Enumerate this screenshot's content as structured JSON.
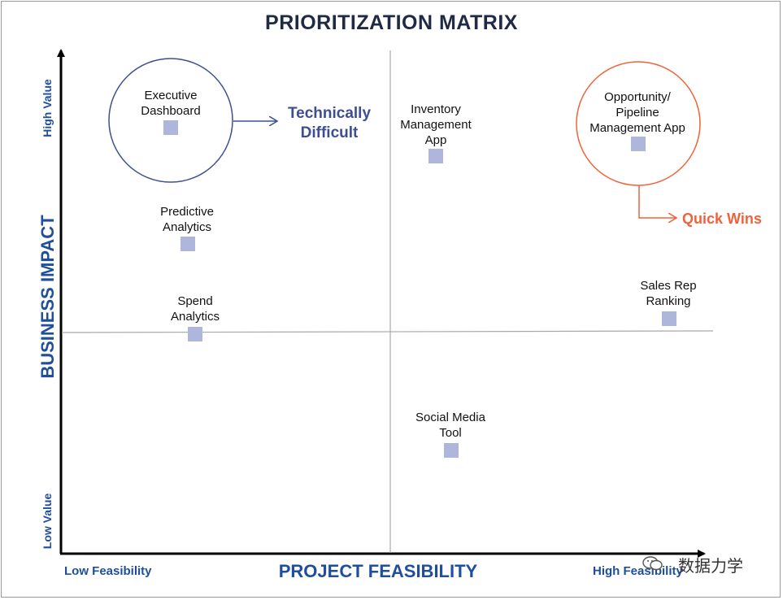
{
  "title": "PRIORITIZATION MATRIX",
  "axes": {
    "x_title": "PROJECT FEASIBILITY",
    "y_title": "BUSINESS IMPACT",
    "x_low": "Low Feasibility",
    "x_high": "High Feasibility",
    "y_low": "Low Value",
    "y_high": "High Value"
  },
  "items": [
    {
      "id": "executive-dashboard",
      "line1": "Executive",
      "line2": "Dashboard",
      "line3": ""
    },
    {
      "id": "predictive-analytics",
      "line1": "Predictive",
      "line2": "Analytics",
      "line3": ""
    },
    {
      "id": "spend-analytics",
      "line1": "Spend",
      "line2": "Analytics",
      "line3": ""
    },
    {
      "id": "inventory-management-app",
      "line1": "Inventory",
      "line2": "Management",
      "line3": "App"
    },
    {
      "id": "opportunity-pipeline-app",
      "line1": "Opportunity/",
      "line2": "Pipeline",
      "line3": "Management App"
    },
    {
      "id": "sales-rep-ranking",
      "line1": "Sales Rep",
      "line2": "Ranking",
      "line3": ""
    },
    {
      "id": "social-media-tool",
      "line1": "Social Media",
      "line2": "Tool",
      "line3": ""
    }
  ],
  "callouts": {
    "technically_difficult_1": "Technically",
    "technically_difficult_2": "Difficult",
    "quick_wins": "Quick Wins"
  },
  "colors": {
    "title": "#1f2a44",
    "axis_text": "#1f4e9c",
    "marker": "#aeb7db",
    "technically_difficult": "#3d4f91",
    "quick_wins": "#f0623a"
  },
  "watermark": "数据力学"
}
